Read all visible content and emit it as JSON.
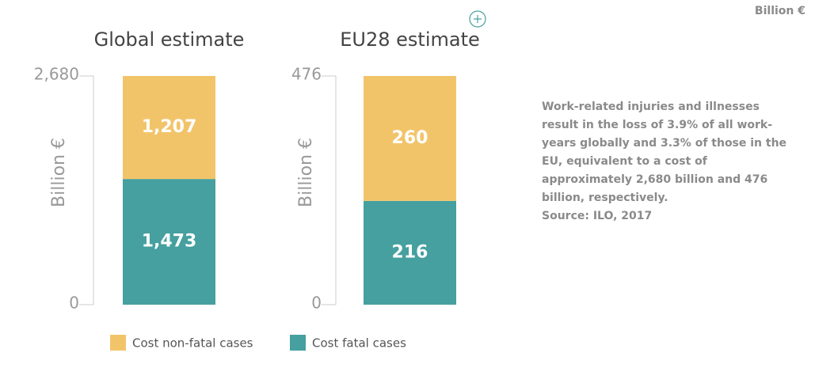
{
  "unit_label": "Billion €",
  "note": "Work-related injuries and illnesses result in the loss of 3.9% of all work-years globally and 3.3% of those in the EU, equivalent to a cost of approximately 2,680 billion and 476 billion, respectively.",
  "source": "Source: ILO, 2017",
  "chart_data": [
    {
      "type": "stacked-bar",
      "title": "Global estimate",
      "y_label": "Billion €",
      "ylim": [
        0,
        2680
      ],
      "yticks": [
        0,
        {
          "value": 2680,
          "label": "2,680"
        }
      ],
      "series": [
        {
          "name": "Cost fatal cases",
          "color": "#45a09f",
          "values": [
            1473
          ],
          "value_labels": [
            "1,473"
          ]
        },
        {
          "name": "Cost non-fatal cases",
          "color": "#f2c46a",
          "values": [
            1207
          ],
          "value_labels": [
            "1,207"
          ]
        }
      ]
    },
    {
      "type": "stacked-bar",
      "title": "EU28 estimate",
      "y_label": "Billion €",
      "ylim": [
        0,
        476
      ],
      "yticks": [
        0,
        476
      ],
      "series": [
        {
          "color": "#45a09f",
          "values": [
            216
          ]
        },
        {
          "color": "#f2c46a",
          "values": [
            260
          ]
        }
      ]
    }
  ]
}
